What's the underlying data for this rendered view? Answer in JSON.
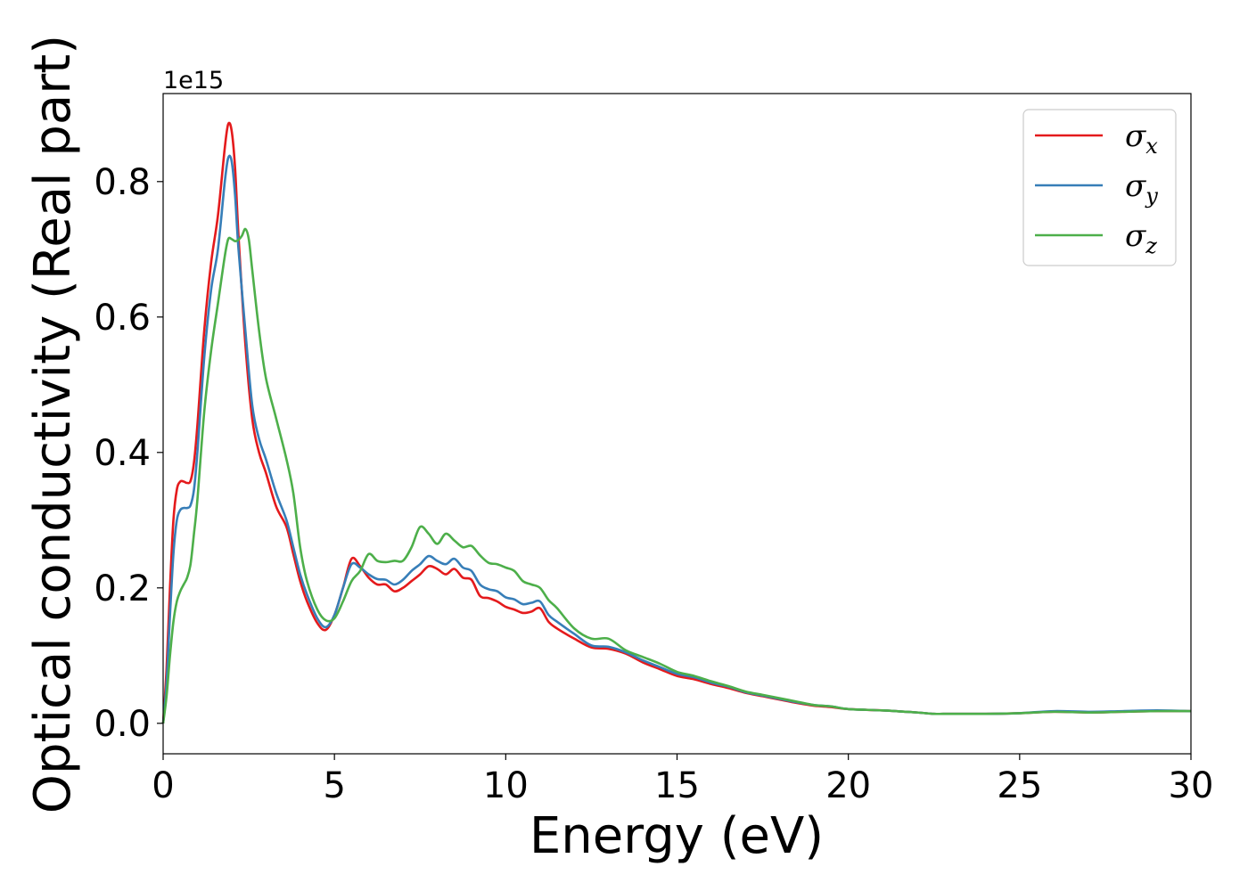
{
  "chart_data": {
    "type": "line",
    "xlabel": "Energy (eV)",
    "ylabel": "Optical conductivity (Real part)",
    "y_offset_text": "1e15",
    "y_scale_factor": 1000000000000000.0,
    "xlim": [
      0,
      30
    ],
    "ylim": [
      -0.045,
      0.93
    ],
    "x_ticks": [
      0,
      5,
      10,
      15,
      20,
      25,
      30
    ],
    "x_tick_labels": [
      "0",
      "5",
      "10",
      "15",
      "20",
      "25",
      "30"
    ],
    "y_ticks": [
      0.0,
      0.2,
      0.4,
      0.6,
      0.8
    ],
    "y_tick_labels": [
      "0.0",
      "0.2",
      "0.4",
      "0.6",
      "0.8"
    ],
    "grid": false,
    "legend_position": "top-right",
    "series": [
      {
        "name": "σx",
        "legend_symbol": "σ",
        "legend_subscript": "x",
        "color": "#e41a1c",
        "x": [
          0,
          0.1,
          0.2,
          0.3,
          0.4,
          0.5,
          0.6,
          0.7,
          0.8,
          0.9,
          1.0,
          1.2,
          1.4,
          1.6,
          1.8,
          1.9,
          2.0,
          2.1,
          2.2,
          2.4,
          2.6,
          2.8,
          3.0,
          3.3,
          3.6,
          3.8,
          4.0,
          4.2,
          4.5,
          4.75,
          5.0,
          5.25,
          5.5,
          5.75,
          6.0,
          6.25,
          6.5,
          6.75,
          7.0,
          7.25,
          7.5,
          7.75,
          8.0,
          8.25,
          8.5,
          8.75,
          9.0,
          9.25,
          9.5,
          9.75,
          10.0,
          10.25,
          10.5,
          10.75,
          11.0,
          11.25,
          11.5,
          12.0,
          12.5,
          13.0,
          13.5,
          14.0,
          14.5,
          15.0,
          15.5,
          16.0,
          16.5,
          17.0,
          17.5,
          18.0,
          18.5,
          19.0,
          19.5,
          20.0,
          21.0,
          22.0,
          22.5,
          23.0,
          24.0,
          25.0,
          26.0,
          27.0,
          28.0,
          29.0,
          30.0
        ],
        "y": [
          0.0,
          0.08,
          0.2,
          0.3,
          0.345,
          0.357,
          0.357,
          0.355,
          0.358,
          0.385,
          0.44,
          0.58,
          0.68,
          0.75,
          0.85,
          0.885,
          0.875,
          0.82,
          0.72,
          0.56,
          0.45,
          0.4,
          0.37,
          0.32,
          0.29,
          0.25,
          0.21,
          0.18,
          0.148,
          0.138,
          0.16,
          0.2,
          0.243,
          0.232,
          0.215,
          0.205,
          0.205,
          0.195,
          0.2,
          0.21,
          0.22,
          0.232,
          0.228,
          0.22,
          0.228,
          0.215,
          0.212,
          0.188,
          0.185,
          0.18,
          0.172,
          0.168,
          0.163,
          0.165,
          0.17,
          0.15,
          0.14,
          0.125,
          0.112,
          0.11,
          0.103,
          0.09,
          0.08,
          0.07,
          0.065,
          0.058,
          0.052,
          0.045,
          0.04,
          0.035,
          0.03,
          0.026,
          0.024,
          0.021,
          0.019,
          0.016,
          0.014,
          0.014,
          0.014,
          0.015,
          0.017,
          0.016,
          0.017,
          0.018,
          0.018
        ]
      },
      {
        "name": "σy",
        "legend_symbol": "σ",
        "legend_subscript": "y",
        "color": "#377eb8",
        "x": [
          0,
          0.1,
          0.2,
          0.3,
          0.4,
          0.5,
          0.6,
          0.7,
          0.8,
          0.9,
          1.0,
          1.2,
          1.4,
          1.6,
          1.8,
          1.9,
          2.0,
          2.1,
          2.2,
          2.4,
          2.6,
          2.8,
          3.0,
          3.3,
          3.6,
          3.8,
          4.0,
          4.2,
          4.5,
          4.75,
          5.0,
          5.25,
          5.5,
          5.75,
          6.0,
          6.25,
          6.5,
          6.75,
          7.0,
          7.25,
          7.5,
          7.75,
          8.0,
          8.25,
          8.5,
          8.75,
          9.0,
          9.25,
          9.5,
          9.75,
          10.0,
          10.25,
          10.5,
          10.75,
          11.0,
          11.25,
          11.5,
          12.0,
          12.5,
          13.0,
          13.5,
          14.0,
          14.5,
          15.0,
          15.5,
          16.0,
          16.5,
          17.0,
          17.5,
          18.0,
          18.5,
          19.0,
          19.5,
          20.0,
          21.0,
          22.0,
          22.5,
          23.0,
          24.0,
          25.0,
          26.0,
          27.0,
          28.0,
          29.0,
          30.0
        ],
        "y": [
          0.0,
          0.06,
          0.16,
          0.25,
          0.3,
          0.315,
          0.318,
          0.318,
          0.322,
          0.345,
          0.4,
          0.54,
          0.64,
          0.7,
          0.8,
          0.835,
          0.83,
          0.78,
          0.7,
          0.58,
          0.47,
          0.42,
          0.39,
          0.34,
          0.3,
          0.26,
          0.22,
          0.19,
          0.155,
          0.142,
          0.16,
          0.2,
          0.235,
          0.23,
          0.22,
          0.213,
          0.212,
          0.205,
          0.212,
          0.225,
          0.235,
          0.247,
          0.24,
          0.235,
          0.243,
          0.23,
          0.225,
          0.205,
          0.198,
          0.195,
          0.186,
          0.183,
          0.176,
          0.178,
          0.18,
          0.16,
          0.15,
          0.132,
          0.115,
          0.113,
          0.105,
          0.093,
          0.083,
          0.073,
          0.068,
          0.06,
          0.054,
          0.046,
          0.041,
          0.036,
          0.031,
          0.027,
          0.025,
          0.021,
          0.019,
          0.016,
          0.014,
          0.014,
          0.014,
          0.015,
          0.018,
          0.017,
          0.018,
          0.019,
          0.018
        ]
      },
      {
        "name": "σz",
        "legend_symbol": "σ",
        "legend_subscript": "z",
        "color": "#4daf4a",
        "x": [
          0,
          0.1,
          0.2,
          0.3,
          0.4,
          0.5,
          0.6,
          0.7,
          0.8,
          0.9,
          1.0,
          1.2,
          1.4,
          1.6,
          1.8,
          1.9,
          2.0,
          2.1,
          2.2,
          2.3,
          2.4,
          2.5,
          2.6,
          2.8,
          3.0,
          3.3,
          3.6,
          3.8,
          4.0,
          4.2,
          4.5,
          4.75,
          5.0,
          5.25,
          5.5,
          5.75,
          6.0,
          6.25,
          6.5,
          6.75,
          7.0,
          7.25,
          7.5,
          7.75,
          8.0,
          8.25,
          8.5,
          8.75,
          9.0,
          9.25,
          9.5,
          9.75,
          10.0,
          10.25,
          10.5,
          10.75,
          11.0,
          11.25,
          11.5,
          12.0,
          12.5,
          13.0,
          13.5,
          14.0,
          14.5,
          15.0,
          15.5,
          16.0,
          16.5,
          17.0,
          17.5,
          18.0,
          18.5,
          19.0,
          19.5,
          20.0,
          21.0,
          22.0,
          22.5,
          23.0,
          24.0,
          25.0,
          26.0,
          27.0,
          28.0,
          29.0,
          30.0
        ],
        "y": [
          0.0,
          0.04,
          0.1,
          0.15,
          0.18,
          0.195,
          0.205,
          0.215,
          0.235,
          0.28,
          0.33,
          0.46,
          0.55,
          0.62,
          0.69,
          0.715,
          0.715,
          0.712,
          0.714,
          0.72,
          0.73,
          0.715,
          0.67,
          0.58,
          0.51,
          0.45,
          0.39,
          0.34,
          0.26,
          0.21,
          0.168,
          0.152,
          0.155,
          0.18,
          0.21,
          0.225,
          0.25,
          0.24,
          0.238,
          0.24,
          0.24,
          0.26,
          0.29,
          0.28,
          0.265,
          0.28,
          0.27,
          0.26,
          0.262,
          0.248,
          0.237,
          0.235,
          0.23,
          0.225,
          0.21,
          0.205,
          0.2,
          0.182,
          0.17,
          0.14,
          0.125,
          0.125,
          0.108,
          0.098,
          0.088,
          0.076,
          0.07,
          0.062,
          0.055,
          0.047,
          0.042,
          0.037,
          0.032,
          0.027,
          0.025,
          0.021,
          0.019,
          0.016,
          0.014,
          0.014,
          0.014,
          0.015,
          0.017,
          0.016,
          0.017,
          0.018,
          0.018
        ]
      }
    ]
  }
}
